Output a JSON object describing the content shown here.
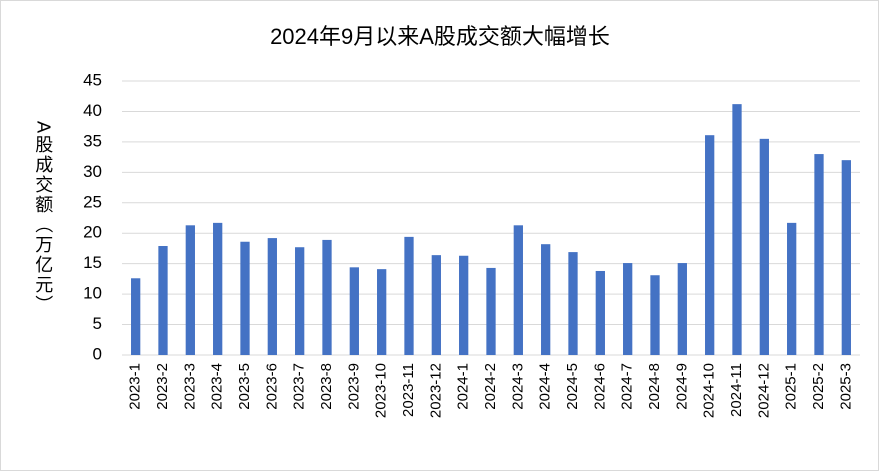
{
  "chart_data": {
    "type": "bar",
    "title": "2024年9月以来A股成交额大幅增长",
    "y_label": "A股成交额（万亿元）",
    "categories": [
      "2023-1",
      "2023-2",
      "2023-3",
      "2023-4",
      "2023-5",
      "2023-6",
      "2023-7",
      "2023-8",
      "2023-9",
      "2023-10",
      "2023-11",
      "2023-12",
      "2024-1",
      "2024-2",
      "2024-3",
      "2024-4",
      "2024-5",
      "2024-6",
      "2024-7",
      "2024-8",
      "2024-9",
      "2024-10",
      "2024-11",
      "2024-12",
      "2025-1",
      "2025-2",
      "2025-3"
    ],
    "values": [
      12.6,
      17.9,
      21.3,
      21.7,
      18.6,
      19.2,
      17.7,
      18.9,
      14.4,
      14.1,
      19.4,
      16.4,
      16.3,
      14.3,
      21.3,
      18.2,
      16.9,
      13.8,
      15.1,
      13.1,
      15.1,
      36.1,
      41.2,
      35.5,
      21.7,
      33.0,
      32.0
    ],
    "color": "#4472c4",
    "ylim": [
      0,
      45
    ],
    "yticks": [
      0,
      5,
      10,
      15,
      20,
      25,
      30,
      35,
      40,
      45
    ],
    "grid": true
  }
}
